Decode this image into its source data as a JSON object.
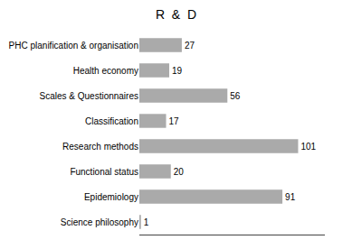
{
  "chart_data": {
    "type": "bar",
    "orientation": "horizontal",
    "title": "R  &  D",
    "categories": [
      "Science philosophy",
      "Epidemiology",
      "Functional status",
      "Research methods",
      "Classification",
      "Scales & Questionnaires",
      "Health economy",
      "PHC planification & organisation"
    ],
    "values": [
      1,
      91,
      20,
      101,
      17,
      56,
      19,
      27
    ],
    "color": "#aaaaaa",
    "xlim": [
      0,
      118
    ],
    "data_labels": true,
    "tick_labels": "y",
    "grid": false
  }
}
